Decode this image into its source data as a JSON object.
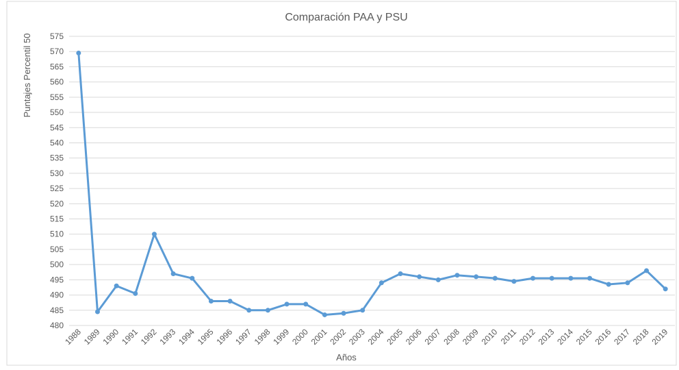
{
  "chart_data": {
    "type": "line",
    "title": "Comparación PAA y PSU",
    "x_label": "Años",
    "y_label": "Puntajes Percentil 50",
    "categories": [
      "1988",
      "1989",
      "1990",
      "1991",
      "1992",
      "1993",
      "1994",
      "1995",
      "1996",
      "1997",
      "1998",
      "1999",
      "2000",
      "2001",
      "2002",
      "2003",
      "2004",
      "2005",
      "2006",
      "2007",
      "2008",
      "2009",
      "2010",
      "2011",
      "2012",
      "2013",
      "2014",
      "2015",
      "2016",
      "2017",
      "2018",
      "2019"
    ],
    "series": [
      {
        "name": "Puntajes Percentil 50",
        "color": "#5b9bd5",
        "values": [
          569.5,
          484.5,
          493,
          490.5,
          510,
          497,
          495.5,
          488,
          488,
          485,
          485,
          487,
          487,
          483.5,
          484,
          485,
          494,
          497,
          496,
          495,
          496.5,
          496,
          495.5,
          494.5,
          495.5,
          495.5,
          495.5,
          495.5,
          493.5,
          494,
          498,
          492
        ]
      }
    ],
    "ylim": [
      480,
      575
    ],
    "yticks": [
      480,
      485,
      490,
      495,
      500,
      505,
      510,
      515,
      520,
      525,
      530,
      535,
      540,
      545,
      550,
      555,
      560,
      565,
      570,
      575
    ],
    "grid": true
  }
}
